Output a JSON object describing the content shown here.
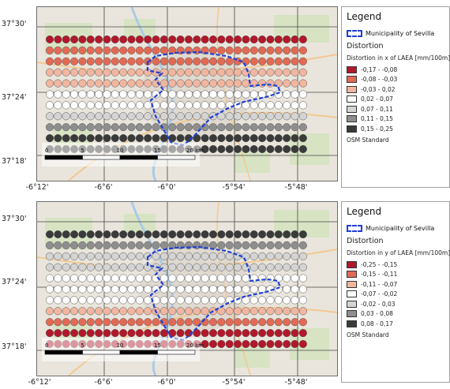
{
  "colors": {
    "boundary": "#1f3fd6",
    "map_bg": "#e9e5dc",
    "land_green": "#cfe2b8",
    "river": "#a9cbe4",
    "road": "#f3c891",
    "urban": "#dcd6cd"
  },
  "axes": {
    "y_labels": [
      "37°30'",
      "37°24'",
      "37°18'"
    ],
    "x_labels": [
      "-6°12'",
      "-6°6'",
      "-6°0'",
      "-5°54'",
      "-5°48'"
    ]
  },
  "scalebar": {
    "ticks": [
      "0",
      "5",
      "10",
      "15",
      "20 km"
    ]
  },
  "panels": [
    {
      "legend": {
        "title": "Legend",
        "municipality_label": "Municipality of Sevilla",
        "distortion_label": "Distortion",
        "subtitle": "Distortion in x of LAEA [mm/100m]",
        "classes": [
          {
            "label": "-0,17 - -0,08",
            "color": "#b2182b"
          },
          {
            "label": "-0,08 - -0,03",
            "color": "#e26a55"
          },
          {
            "label": "-0,03 - 0,02",
            "color": "#f2b6a0"
          },
          {
            "label": "0,02 - 0,07",
            "color": "#ffffff"
          },
          {
            "label": "0,07 - 0,11",
            "color": "#d4d4d4"
          },
          {
            "label": "0,11 - 0,15",
            "color": "#8e8e8e"
          },
          {
            "label": "0,15 - 0,25",
            "color": "#3a3a3a"
          }
        ],
        "basemap_label": "OSM Standard"
      },
      "row_classes": [
        0,
        1,
        1,
        2,
        2,
        3,
        3,
        4,
        5,
        6,
        6
      ]
    },
    {
      "legend": {
        "title": "Legend",
        "municipality_label": "Municipality of Sevilla",
        "distortion_label": "Distortion",
        "subtitle": "Distortion in y of LAEA [mm/100m]",
        "classes": [
          {
            "label": "-0,25 - -0,15",
            "color": "#b2182b"
          },
          {
            "label": "-0,15 - -0,11",
            "color": "#e26a55"
          },
          {
            "label": "-0,11 - -0,07",
            "color": "#f2b6a0"
          },
          {
            "label": "-0,07 - -0,02",
            "color": "#ffffff"
          },
          {
            "label": "-0,02 - 0,03",
            "color": "#d4d4d4"
          },
          {
            "label": "0,03 - 0,08",
            "color": "#8e8e8e"
          },
          {
            "label": "0,08 - 0,17",
            "color": "#3a3a3a"
          }
        ],
        "basemap_label": "OSM Standard"
      },
      "row_classes": [
        6,
        5,
        4,
        4,
        3,
        3,
        3,
        2,
        1,
        0,
        0
      ]
    }
  ]
}
